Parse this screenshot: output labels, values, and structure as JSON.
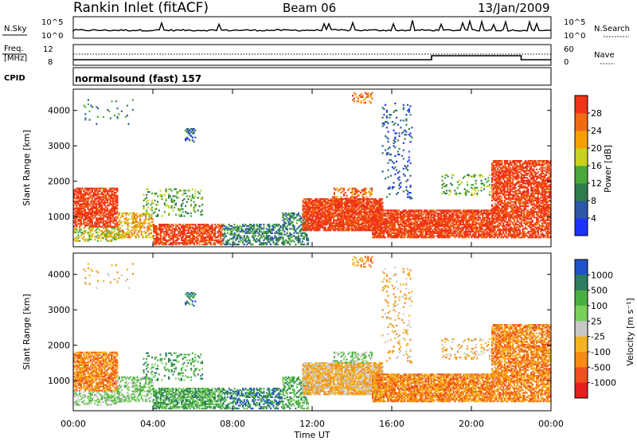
{
  "header": {
    "station": "Rankin Inlet (fitACF)",
    "beam": "Beam 06",
    "date": "13/Jan/2009"
  },
  "top_panels": {
    "nsky_label": "N.Sky",
    "nsky_ticks": [
      "10^5",
      "10^0"
    ],
    "nsearch_label": "N.Search",
    "nsearch_ticks": [
      "10^5",
      "10^0"
    ],
    "freq_label": "Freq.",
    "freq_unit": "[MHz]",
    "freq_ticks": [
      "12",
      "8"
    ],
    "nave_label": "Nave",
    "nave_ticks": [
      "60",
      "0"
    ],
    "cpid_label": "CPID",
    "cpid_text": "normalsound (fast) 157"
  },
  "chart_data": [
    {
      "type": "heatmap",
      "name": "power",
      "ylabel": "Slant Range [km]",
      "y_ticks": [
        1000,
        2000,
        3000,
        4000
      ],
      "ylim": [
        150,
        4600
      ],
      "x_ticks": [],
      "xlim": [
        0,
        24
      ],
      "colorbar_title": "Power [dB]",
      "colorbar_ticks": [
        4,
        8,
        12,
        16,
        20,
        24,
        28
      ],
      "colorbar_range": [
        0,
        32
      ],
      "colorbar_colors": [
        "#1e32ff",
        "#2c56a8",
        "#2e7d4a",
        "#48a83a",
        "#c8d21e",
        "#f5a000",
        "#f06c14",
        "#f03218"
      ]
    },
    {
      "type": "heatmap",
      "name": "velocity",
      "ylabel": "Slant Range [km]",
      "y_ticks": [
        1000,
        2000,
        3000,
        4000
      ],
      "ylim": [
        150,
        4600
      ],
      "x_ticks": [
        "00:00",
        "04:00",
        "08:00",
        "12:00",
        "16:00",
        "20:00",
        "00:00"
      ],
      "xlim": [
        0,
        24
      ],
      "xlabel": "Time UT",
      "colorbar_title": "Velocity [m s⁻¹]",
      "colorbar_ticks": [
        "1000",
        "500",
        "100",
        "25",
        "-25",
        "-100",
        "-500",
        "-1000"
      ],
      "colorbar_colors": [
        "#2052c8",
        "#2e7d5e",
        "#48b040",
        "#7ad05a",
        "#c8c8c8",
        "#f5b41e",
        "#f58c14",
        "#f0501e",
        "#e61e1e"
      ]
    }
  ]
}
